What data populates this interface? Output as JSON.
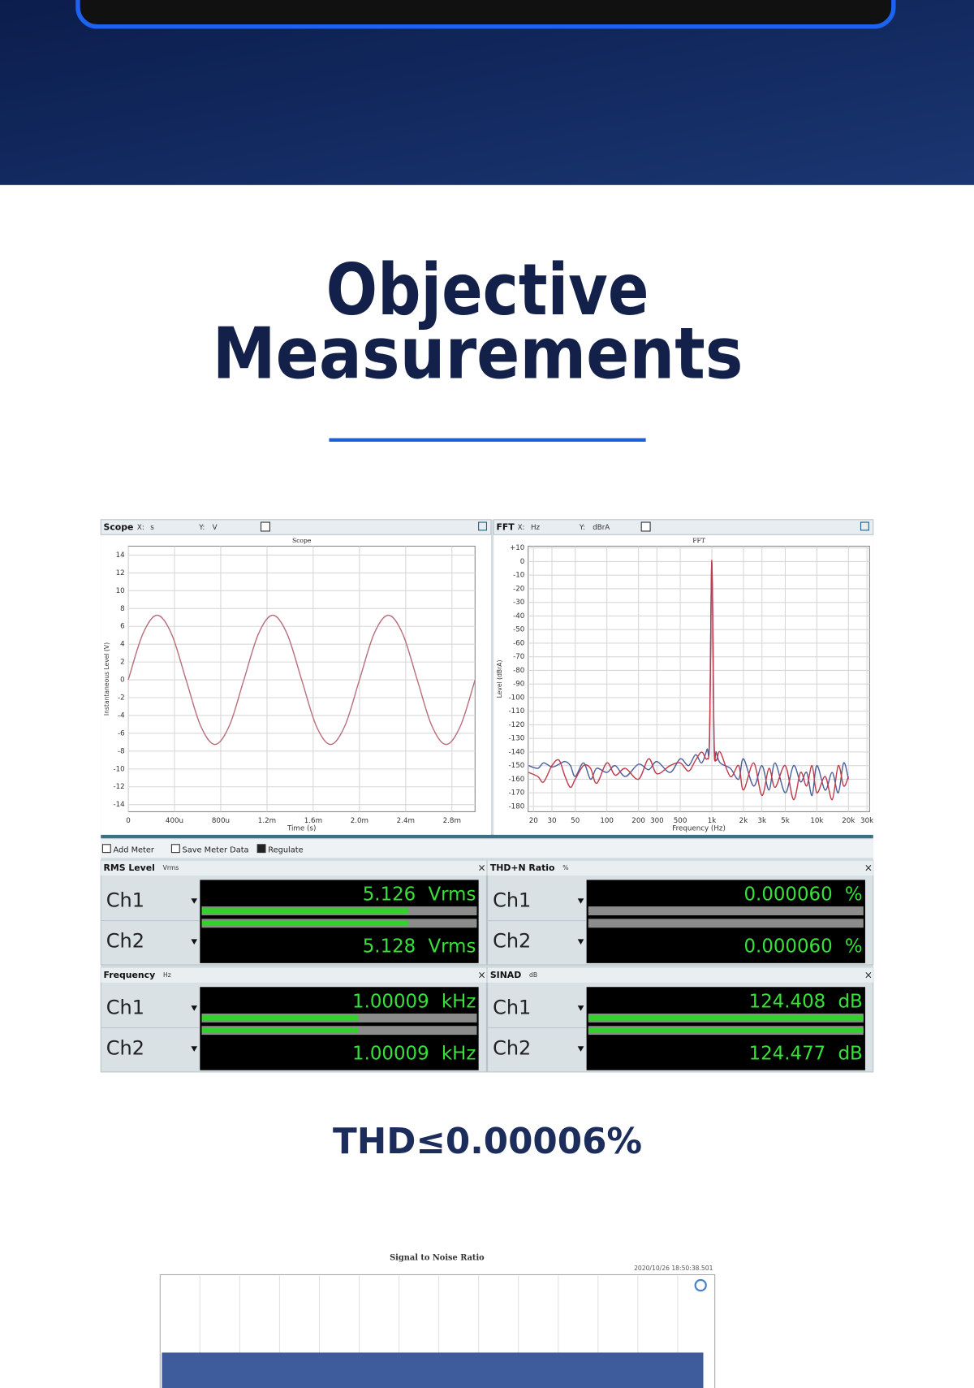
{
  "header": {
    "title_line1": "Objective",
    "title_line2": "Measurements"
  },
  "panel": {
    "scope": {
      "type": "line",
      "label": "Scope",
      "x_prefix": "X:",
      "x_unit": "s",
      "y_prefix": "Y:",
      "y_unit": "V",
      "title": "Scope",
      "xaxis_label": "Time (s)",
      "yaxis_label": "Instantaneous Level (V)",
      "x": [
        0,
        0.000125,
        0.00025,
        0.000375,
        0.0005,
        0.000625,
        0.00075,
        0.000875,
        0.001,
        0.001125,
        0.00125,
        0.001375,
        0.0015,
        0.001625,
        0.00175,
        0.001875,
        0.002,
        0.002125,
        0.00225,
        0.002375,
        0.0025,
        0.002625,
        0.00275,
        0.002875,
        0.003
      ],
      "series": [
        {
          "color": "#b8707c",
          "values": [
            0,
            5.13,
            7.25,
            5.13,
            0,
            -5.13,
            -7.25,
            -5.13,
            0,
            5.13,
            7.25,
            5.13,
            0,
            -5.13,
            -7.25,
            -5.13,
            0,
            5.13,
            7.25,
            5.13,
            0,
            -5.13,
            -7.25,
            -5.13,
            0
          ]
        }
      ],
      "xlim": [
        0,
        0.003
      ],
      "ylim": [
        -14.8,
        15
      ],
      "xticks": [
        0,
        {
          "value": 0.0004,
          "label": "400u"
        },
        {
          "value": 0.0008,
          "label": "800u"
        },
        {
          "value": 0.0012,
          "label": "1.2m"
        },
        {
          "value": 0.0016,
          "label": "1.6m"
        },
        {
          "value": 0.002,
          "label": "2.0m"
        },
        {
          "value": 0.0024,
          "label": "2.4m"
        },
        {
          "value": 0.0028,
          "label": "2.8m"
        }
      ],
      "yticks": [
        14,
        12,
        10,
        8,
        6,
        4,
        2,
        0,
        -2,
        -4,
        -6,
        -8,
        -10,
        -12,
        -14
      ],
      "grid": true,
      "log_x": false
    },
    "fft": {
      "type": "line",
      "label": "FFT",
      "x_prefix": "X:",
      "x_unit": "Hz",
      "y_prefix": "Y:",
      "y_unit": "dBrA",
      "title": "FFT",
      "xaxis_label": "Frequency (Hz)",
      "yaxis_label": "Level (dBrA)",
      "x": [
        18,
        22,
        25,
        30,
        35,
        40,
        45,
        50,
        60,
        70,
        80,
        100,
        120,
        150,
        200,
        250,
        300,
        400,
        500,
        600,
        700,
        800,
        900,
        950,
        1000,
        1050,
        1100,
        1200,
        1500,
        1800,
        2000,
        2500,
        3000,
        3500,
        4000,
        5000,
        6000,
        7000,
        8000,
        9000,
        10000,
        12000,
        14000,
        16000,
        18000,
        20000
      ],
      "series": [
        {
          "color": "#4b5f9c",
          "values": [
            -150,
            -152,
            -148,
            -151,
            -149,
            -147,
            -150,
            -158,
            -148,
            -160,
            -152,
            -155,
            -150,
            -158,
            -149,
            -153,
            -147,
            -155,
            -145,
            -150,
            -142,
            -148,
            -138,
            -132,
            0,
            -135,
            -140,
            -148,
            -152,
            -160,
            -145,
            -165,
            -150,
            -168,
            -148,
            -170,
            -150,
            -162,
            -155,
            -172,
            -150,
            -168,
            -155,
            -170,
            -148,
            -160
          ]
        },
        {
          "color": "#c23a4c",
          "values": [
            -155,
            -158,
            -162,
            -150,
            -146,
            -158,
            -166,
            -160,
            -150,
            -152,
            -163,
            -148,
            -157,
            -152,
            -160,
            -145,
            -156,
            -150,
            -148,
            -154,
            -146,
            -140,
            -145,
            -128,
            1,
            -130,
            -146,
            -140,
            -158,
            -150,
            -168,
            -148,
            -172,
            -152,
            -166,
            -150,
            -175,
            -155,
            -165,
            -150,
            -170,
            -158,
            -175,
            -150,
            -165,
            -158
          ]
        }
      ],
      "xlim": [
        17.8,
        31800
      ],
      "ylim": [
        -183.9,
        11.3
      ],
      "log_x": true,
      "grid": true,
      "xticks": [
        20,
        30,
        50,
        100,
        200,
        300,
        500,
        {
          "value": 1000,
          "label": "1k"
        },
        {
          "value": 2000,
          "label": "2k"
        },
        {
          "value": 3000,
          "label": "3k"
        },
        {
          "value": 5000,
          "label": "5k"
        },
        {
          "value": 10000,
          "label": "10k"
        },
        {
          "value": 20000,
          "label": "20k"
        },
        {
          "value": 30000,
          "label": "30k"
        }
      ],
      "yticks": [
        {
          "value": 10,
          "label": "+10"
        },
        0,
        -10,
        -20,
        -30,
        -40,
        -50,
        -60,
        -70,
        -80,
        -90,
        -100,
        -110,
        -120,
        -130,
        -140,
        -150,
        -160,
        -170,
        -180
      ]
    },
    "toolbar": [
      "Add Meter",
      "Save Meter Data",
      "Regulate"
    ],
    "meters": [
      {
        "title": "RMS Level",
        "unit": "Vrms",
        "levels": [
          0.75,
          0.75
        ],
        "rows": [
          {
            "channel": "Ch1",
            "reading": "5.126",
            "unit": "Vrms"
          },
          {
            "channel": "Ch2",
            "reading": "5.128",
            "unit": "Vrms"
          }
        ]
      },
      {
        "title": "THD+N Ratio",
        "unit": "%",
        "levels": [
          0,
          0
        ],
        "rows": [
          {
            "channel": "Ch1",
            "reading": "0.000060",
            "unit": "%"
          },
          {
            "channel": "Ch2",
            "reading": "0.000060",
            "unit": "%"
          }
        ]
      },
      {
        "title": "Frequency",
        "unit": "Hz",
        "levels": [
          0.57,
          0.57
        ],
        "rows": [
          {
            "channel": "Ch1",
            "reading": "1.00009",
            "unit": "kHz"
          },
          {
            "channel": "Ch2",
            "reading": "1.00009",
            "unit": "kHz"
          }
        ]
      },
      {
        "title": "SINAD",
        "unit": "dB",
        "levels": [
          1,
          1
        ],
        "rows": [
          {
            "channel": "Ch1",
            "reading": "124.408",
            "unit": "dB"
          },
          {
            "channel": "Ch2",
            "reading": "124.477",
            "unit": "dB"
          }
        ]
      }
    ]
  },
  "thd": "THD≤0.00006%",
  "snr": {
    "title": "Signal to Noise Ratio",
    "timestamp": "2020/10/26 18:50:38.501"
  }
}
